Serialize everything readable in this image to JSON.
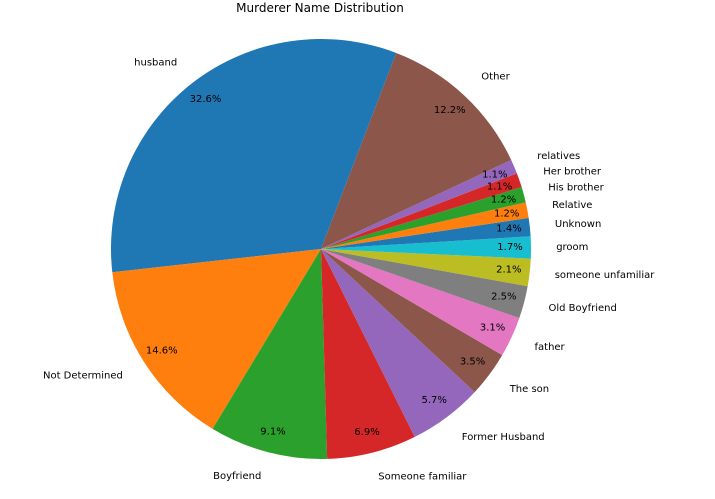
{
  "chart_data": {
    "type": "pie",
    "title": "Murderer Name Distribution",
    "start_angle_deg": 69,
    "direction": "counterclockwise",
    "slices": [
      {
        "label": "husband",
        "value": 32.6,
        "pct_label": "32.6%",
        "color": "#1f77b4"
      },
      {
        "label": "Not Determined",
        "value": 14.6,
        "pct_label": "14.6%",
        "color": "#ff7f0e"
      },
      {
        "label": "Boyfriend",
        "value": 9.1,
        "pct_label": "9.1%",
        "color": "#2ca02c"
      },
      {
        "label": "Someone familiar",
        "value": 6.9,
        "pct_label": "6.9%",
        "color": "#d62728"
      },
      {
        "label": "Former Husband",
        "value": 5.7,
        "pct_label": "5.7%",
        "color": "#9467bd"
      },
      {
        "label": "The son",
        "value": 3.5,
        "pct_label": "3.5%",
        "color": "#8c564b"
      },
      {
        "label": "father",
        "value": 3.1,
        "pct_label": "3.1%",
        "color": "#e377c2"
      },
      {
        "label": "Old Boyfriend",
        "value": 2.5,
        "pct_label": "2.5%",
        "color": "#7f7f7f"
      },
      {
        "label": "someone unfamiliar",
        "value": 2.1,
        "pct_label": "2.1%",
        "color": "#bcbd22"
      },
      {
        "label": "groom",
        "value": 1.7,
        "pct_label": "1.7%",
        "color": "#17becf"
      },
      {
        "label": "Unknown",
        "value": 1.4,
        "pct_label": "1.4%",
        "color": "#1f77b4"
      },
      {
        "label": "Relative",
        "value": 1.2,
        "pct_label": "1.2%",
        "color": "#ff7f0e"
      },
      {
        "label": "His brother",
        "value": 1.2,
        "pct_label": "1.2%",
        "color": "#2ca02c"
      },
      {
        "label": "Her brother",
        "value": 1.1,
        "pct_label": "1.1%",
        "color": "#d62728"
      },
      {
        "label": "relatives",
        "value": 1.1,
        "pct_label": "1.1%",
        "color": "#9467bd"
      },
      {
        "label": "Other",
        "value": 12.2,
        "pct_label": "12.2%",
        "color": "#8c564b"
      }
    ]
  }
}
